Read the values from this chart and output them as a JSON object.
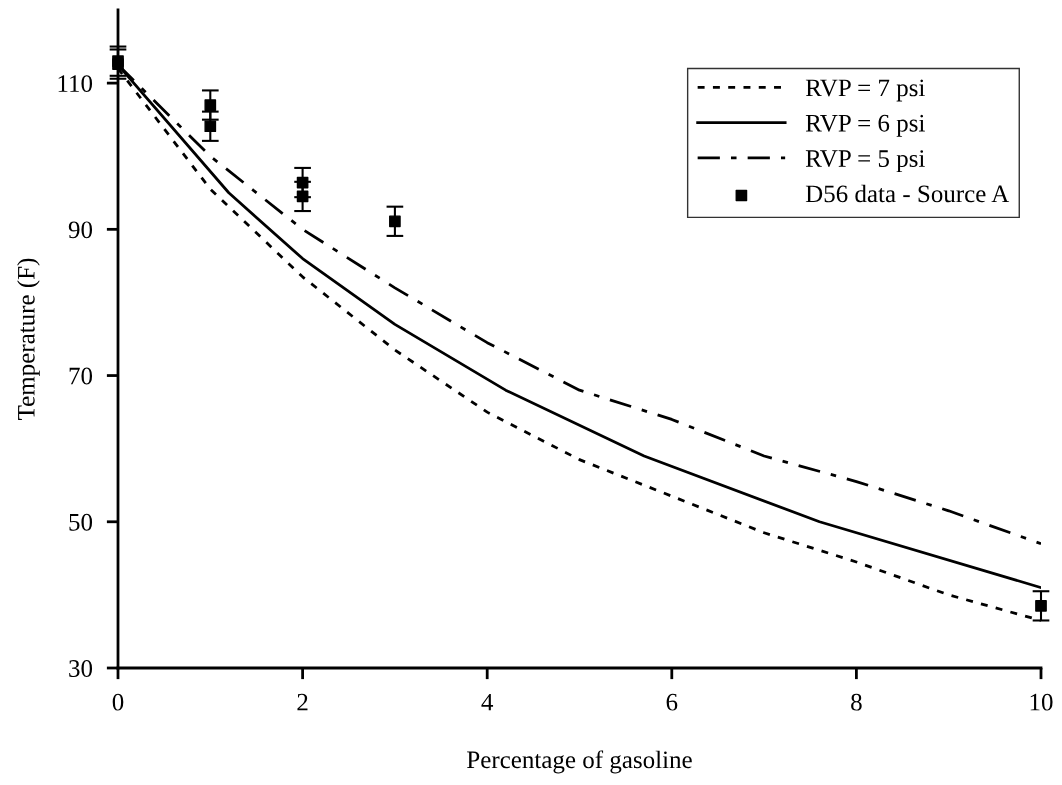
{
  "chart_data": {
    "type": "line",
    "xlabel": "Percentage of gasoline",
    "ylabel": "Temperature (F)",
    "xlim": [
      0,
      10
    ],
    "xticks": [
      0,
      2,
      4,
      6,
      8,
      10
    ],
    "ylim": [
      30,
      120
    ],
    "yticks": [
      30,
      50,
      70,
      90,
      110
    ],
    "grid": false,
    "legend": "top right",
    "series": [
      {
        "name": "RVP = 7 psi",
        "color": "#000000",
        "line_style": "dotted",
        "marker": "none",
        "x": [
          0,
          1,
          2,
          3,
          4,
          5,
          6,
          7,
          8,
          9,
          10
        ],
        "values": [
          112,
          95.5,
          83.5,
          73.5,
          65,
          58.5,
          53.5,
          48.5,
          44.5,
          40,
          36.5
        ]
      },
      {
        "name": "RVP = 6 psi",
        "color": "#000000",
        "line_style": "solid",
        "marker": "none",
        "x": [
          0,
          1.2,
          2,
          3,
          4.2,
          5.7,
          7.6,
          10
        ],
        "values": [
          112.5,
          95,
          86,
          77,
          68,
          59,
          50,
          41
        ]
      },
      {
        "name": "RVP = 5 psi",
        "color": "#000000",
        "line_style": "dashdot",
        "marker": "none",
        "x": [
          0,
          1,
          2,
          3,
          4,
          5,
          6,
          7,
          8,
          9,
          10
        ],
        "values": [
          112.5,
          100,
          90,
          82,
          74.5,
          68,
          64,
          59,
          55.5,
          51.5,
          47
        ]
      },
      {
        "name": "D56 data - Source A",
        "type": "scatter",
        "color": "#000000",
        "marker": "square",
        "x": [
          0,
          0,
          1,
          1,
          2,
          2,
          3,
          10
        ],
        "values": [
          113,
          112.6,
          107,
          104.1,
          96.4,
          94.5,
          91.1,
          38.5
        ],
        "errors": [
          2,
          2,
          2,
          2,
          2,
          2,
          2,
          2
        ]
      }
    ]
  }
}
